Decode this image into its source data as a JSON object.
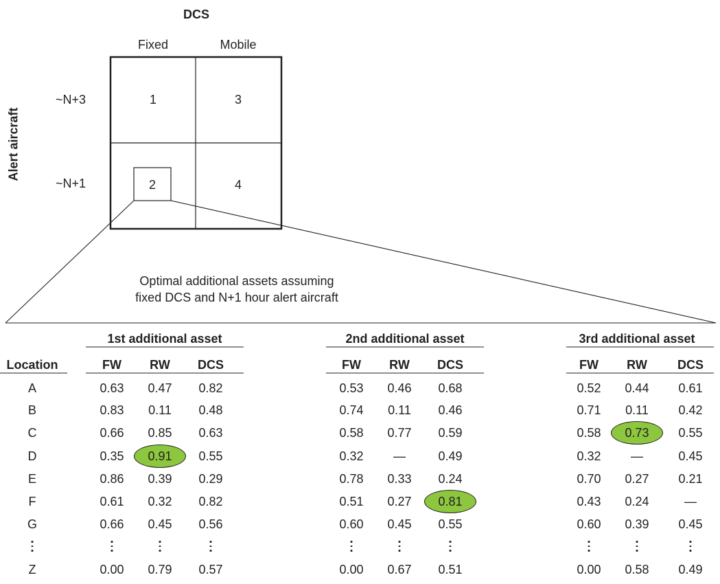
{
  "matrix": {
    "top_title": "DCS",
    "col_labels": [
      "Fixed",
      "Mobile"
    ],
    "row_title": "Alert aircraft",
    "row_labels": [
      "~N+3",
      "~N+1"
    ],
    "cells": [
      "1",
      "3",
      "2",
      "4"
    ]
  },
  "caption": [
    "Optimal additional assets assuming",
    "fixed DCS and N+1 hour alert aircraft"
  ],
  "table": {
    "location_header": "Location",
    "groups": [
      {
        "title": "1st additional asset",
        "columns": [
          "FW",
          "RW",
          "DCS"
        ]
      },
      {
        "title": "2nd additional asset",
        "columns": [
          "FW",
          "RW",
          "DCS"
        ]
      },
      {
        "title": "3rd additional asset",
        "columns": [
          "FW",
          "RW",
          "DCS"
        ]
      }
    ],
    "rows": [
      {
        "location": "A",
        "values": [
          "0.63",
          "0.47",
          "0.82",
          "0.53",
          "0.46",
          "0.68",
          "0.52",
          "0.44",
          "0.61"
        ]
      },
      {
        "location": "B",
        "values": [
          "0.83",
          "0.11",
          "0.48",
          "0.74",
          "0.11",
          "0.46",
          "0.71",
          "0.11",
          "0.42"
        ]
      },
      {
        "location": "C",
        "values": [
          "0.66",
          "0.85",
          "0.63",
          "0.58",
          "0.77",
          "0.59",
          "0.58",
          "0.73",
          "0.55"
        ]
      },
      {
        "location": "D",
        "values": [
          "0.35",
          "0.91",
          "0.55",
          "0.32",
          "—",
          "0.49",
          "0.32",
          "—",
          "0.45"
        ]
      },
      {
        "location": "E",
        "values": [
          "0.86",
          "0.39",
          "0.29",
          "0.78",
          "0.33",
          "0.24",
          "0.70",
          "0.27",
          "0.21"
        ]
      },
      {
        "location": "F",
        "values": [
          "0.61",
          "0.32",
          "0.82",
          "0.51",
          "0.27",
          "0.81",
          "0.43",
          "0.24",
          "—"
        ]
      },
      {
        "location": "G",
        "values": [
          "0.66",
          "0.45",
          "0.56",
          "0.60",
          "0.45",
          "0.55",
          "0.60",
          "0.39",
          "0.45"
        ]
      },
      {
        "location": "Z",
        "values": [
          "0.00",
          "0.79",
          "0.57",
          "0.00",
          "0.67",
          "0.51",
          "0.00",
          "0.58",
          "0.49"
        ]
      }
    ],
    "highlighted": [
      {
        "row": 3,
        "col": 1
      },
      {
        "row": 5,
        "col": 5
      },
      {
        "row": 2,
        "col": 7
      }
    ],
    "highlight_color": "#8dc63f"
  }
}
